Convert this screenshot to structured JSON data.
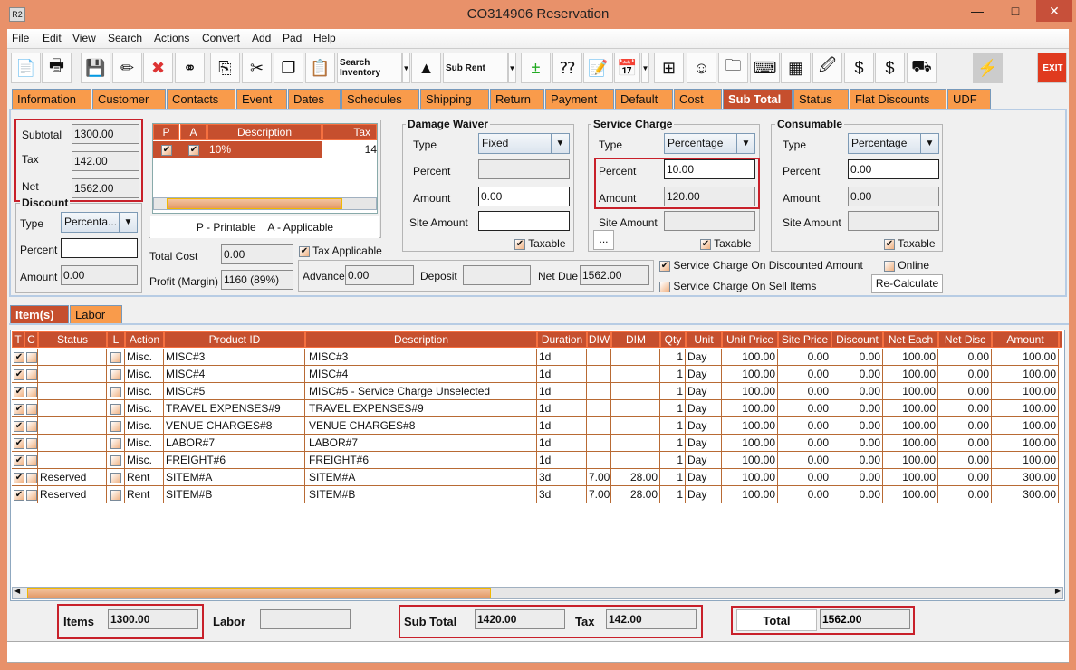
{
  "window": {
    "title": "CO314906 Reservation",
    "app_icon": "R2",
    "minimize": "—",
    "maximize": "□",
    "close": "✕"
  },
  "menu": [
    "File",
    "Edit",
    "View",
    "Search",
    "Actions",
    "Convert",
    "Add",
    "Pad",
    "Help"
  ],
  "toolbar": {
    "search_inventory": "Search Inventory",
    "sub_rent": "Sub Rent",
    "exit": "EXIT"
  },
  "tabs": [
    "Information",
    "Customer",
    "Contacts",
    "Event",
    "Dates",
    "Schedules",
    "Shipping",
    "Return",
    "Payment",
    "Default",
    "Cost",
    "Sub Total",
    "Status",
    "Flat Discounts",
    "UDF"
  ],
  "active_tab": "Sub Total",
  "subtotal": {
    "subtotal_label": "Subtotal",
    "subtotal": "1300.00",
    "tax_label": "Tax",
    "tax": "142.00",
    "net_label": "Net",
    "net": "1562.00"
  },
  "discount": {
    "title": "Discount",
    "type_label": "Type",
    "type": "Percenta...",
    "percent_label": "Percent",
    "percent": "",
    "amount_label": "Amount",
    "amount": "0.00"
  },
  "tax_table": {
    "headers": [
      "P",
      "A",
      "Description",
      "Tax"
    ],
    "rows": [
      {
        "p": true,
        "a": true,
        "description": "10%",
        "tax": "14"
      }
    ],
    "legend": "P - Printable    A - Applicable"
  },
  "cost": {
    "total_cost_label": "Total Cost",
    "total_cost": "0.00",
    "profit_label": "Profit (Margin)",
    "profit": "1160 (89%)",
    "tax_applicable": "Tax Applicable",
    "tax_applicable_checked": true
  },
  "payment": {
    "advance_label": "Advance",
    "advance": "0.00",
    "deposit_label": "Deposit",
    "deposit": "",
    "net_due_label": "Net Due",
    "net_due": "1562.00"
  },
  "damage_waiver": {
    "title": "Damage  Waiver",
    "type_label": "Type",
    "type": "Fixed",
    "percent_label": "Percent",
    "percent": "",
    "amount_label": "Amount",
    "amount": "0.00",
    "site_amount_label": "Site Amount",
    "site_amount": "",
    "taxable": "Taxable",
    "taxable_checked": true
  },
  "service_charge": {
    "title": "Service Charge",
    "type_label": "Type",
    "type": "Percentage",
    "percent_label": "Percent",
    "percent": "10.00",
    "amount_label": "Amount",
    "amount": "120.00",
    "site_amount_label": "Site Amount",
    "site_amount": "",
    "more": "...",
    "taxable": "Taxable",
    "taxable_checked": true
  },
  "consumable": {
    "title": "Consumable",
    "type_label": "Type",
    "type": "Percentage",
    "percent_label": "Percent",
    "percent": "0.00",
    "amount_label": "Amount",
    "amount": "0.00",
    "site_amount_label": "Site Amount",
    "site_amount": "",
    "taxable": "Taxable",
    "taxable_checked": true
  },
  "options": {
    "sc_discounted": "Service Charge On Discounted Amount",
    "sc_discounted_checked": true,
    "sc_sell": "Service Charge On Sell Items",
    "sc_sell_checked": false,
    "online": "Online",
    "online_checked": false,
    "recalculate": "Re-Calculate"
  },
  "item_tabs": [
    "Item(s)",
    "Labor"
  ],
  "items": {
    "headers": [
      "T",
      "C",
      "Status",
      "L",
      "Action",
      "Product ID",
      "Description",
      "Duration",
      "DIW",
      "DIM",
      "Qty",
      "Unit",
      "Unit Price",
      "Site Price",
      "Discount",
      "Net Each",
      "Net Disc",
      "Amount"
    ],
    "rows": [
      {
        "t": true,
        "c": false,
        "status": "",
        "l": false,
        "action": "Misc.",
        "product_id": "MISC#3",
        "description": "MISC#3",
        "duration": "1d",
        "diw": "",
        "dim": "",
        "qty": "1",
        "unit": "Day",
        "unit_price": "100.00",
        "site_price": "0.00",
        "discount": "0.00",
        "net_each": "100.00",
        "net_disc": "0.00",
        "amount": "100.00"
      },
      {
        "t": true,
        "c": false,
        "status": "",
        "l": false,
        "action": "Misc.",
        "product_id": "MISC#4",
        "description": "MISC#4",
        "duration": "1d",
        "diw": "",
        "dim": "",
        "qty": "1",
        "unit": "Day",
        "unit_price": "100.00",
        "site_price": "0.00",
        "discount": "0.00",
        "net_each": "100.00",
        "net_disc": "0.00",
        "amount": "100.00"
      },
      {
        "t": true,
        "c": false,
        "status": "",
        "l": false,
        "action": "Misc.",
        "product_id": "MISC#5",
        "description": "MISC#5 - Service Charge Unselected",
        "duration": "1d",
        "diw": "",
        "dim": "",
        "qty": "1",
        "unit": "Day",
        "unit_price": "100.00",
        "site_price": "0.00",
        "discount": "0.00",
        "net_each": "100.00",
        "net_disc": "0.00",
        "amount": "100.00"
      },
      {
        "t": true,
        "c": false,
        "status": "",
        "l": false,
        "action": "Misc.",
        "product_id": "TRAVEL EXPENSES#9",
        "description": "TRAVEL EXPENSES#9",
        "duration": "1d",
        "diw": "",
        "dim": "",
        "qty": "1",
        "unit": "Day",
        "unit_price": "100.00",
        "site_price": "0.00",
        "discount": "0.00",
        "net_each": "100.00",
        "net_disc": "0.00",
        "amount": "100.00"
      },
      {
        "t": true,
        "c": false,
        "status": "",
        "l": false,
        "action": "Misc.",
        "product_id": "VENUE CHARGES#8",
        "description": "VENUE CHARGES#8",
        "duration": "1d",
        "diw": "",
        "dim": "",
        "qty": "1",
        "unit": "Day",
        "unit_price": "100.00",
        "site_price": "0.00",
        "discount": "0.00",
        "net_each": "100.00",
        "net_disc": "0.00",
        "amount": "100.00"
      },
      {
        "t": true,
        "c": false,
        "status": "",
        "l": false,
        "action": "Misc.",
        "product_id": "LABOR#7",
        "description": "LABOR#7",
        "duration": "1d",
        "diw": "",
        "dim": "",
        "qty": "1",
        "unit": "Day",
        "unit_price": "100.00",
        "site_price": "0.00",
        "discount": "0.00",
        "net_each": "100.00",
        "net_disc": "0.00",
        "amount": "100.00"
      },
      {
        "t": true,
        "c": false,
        "status": "",
        "l": false,
        "action": "Misc.",
        "product_id": "FREIGHT#6",
        "description": "FREIGHT#6",
        "duration": "1d",
        "diw": "",
        "dim": "",
        "qty": "1",
        "unit": "Day",
        "unit_price": "100.00",
        "site_price": "0.00",
        "discount": "0.00",
        "net_each": "100.00",
        "net_disc": "0.00",
        "amount": "100.00"
      },
      {
        "t": true,
        "c": false,
        "status": "Reserved",
        "l": false,
        "action": "Rent",
        "product_id": "SITEM#A",
        "description": "SITEM#A",
        "duration": "3d",
        "diw": "7.00",
        "dim": "28.00",
        "qty": "1",
        "unit": "Day",
        "unit_price": "100.00",
        "site_price": "0.00",
        "discount": "0.00",
        "net_each": "100.00",
        "net_disc": "0.00",
        "amount": "300.00"
      },
      {
        "t": true,
        "c": false,
        "status": "Reserved",
        "l": false,
        "action": "Rent",
        "product_id": "SITEM#B",
        "description": "SITEM#B",
        "duration": "3d",
        "diw": "7.00",
        "dim": "28.00",
        "qty": "1",
        "unit": "Day",
        "unit_price": "100.00",
        "site_price": "0.00",
        "discount": "0.00",
        "net_each": "100.00",
        "net_disc": "0.00",
        "amount": "300.00"
      }
    ]
  },
  "totals": {
    "items_label": "Items",
    "items": "1300.00",
    "labor_label": "Labor",
    "labor": "",
    "sub_total_label": "Sub Total",
    "sub_total": "1420.00",
    "tax_label": "Tax",
    "tax": "142.00",
    "total_label": "Total",
    "total": "1562.00"
  },
  "colors": {
    "accent": "#C64F2E",
    "tab": "#F99B4B",
    "frame": "#E8916A",
    "highlight": "#C8202A"
  }
}
